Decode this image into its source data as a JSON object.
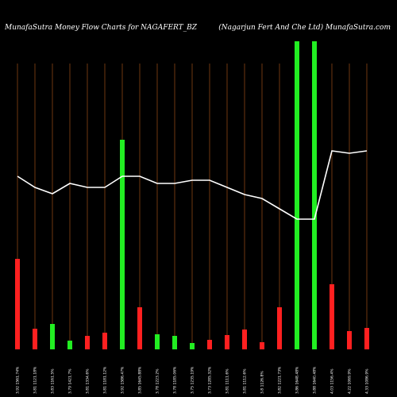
{
  "chart_data": {
    "type": "bar-line",
    "title": "MunafaSutra  Money Flow  Charts for NAGAFERT_BZ",
    "subtitle": "(Nagarjun  Fert And Che   Ltd) MunafaSutra.com",
    "categories": [
      "3.92 1561.74%",
      "3.81 1121.18%",
      "3.83 1161.5%",
      "3.79 1421.7%",
      "3.81 1334.6%",
      "3.81 1181.12%",
      "3.92 1586.47%",
      "3.85 1645.88%",
      "3.78 1223.2%",
      "3.78 1185.06%",
      "3.75 1235.19%",
      "3.73 1285.32%",
      "3.81 1111.6%",
      "3.81 1112.6%",
      "3.8 1126.8%",
      "3.82 1221.73%",
      "3.86 1648.48%",
      "3.88 1640.48%",
      "4.03 1156.4%",
      "4.22 1069.9%",
      "4.33 1086.9%"
    ],
    "bars": {
      "values": [
        114,
        26,
        32,
        11,
        17,
        21,
        264,
        53,
        19,
        17,
        8,
        12,
        18,
        25,
        9,
        53,
        388,
        388,
        82,
        23,
        27
      ],
      "colors": [
        "#ff2020",
        "#ff2020",
        "#22ee22",
        "#22ee22",
        "#ff2020",
        "#ff2020",
        "#22ee22",
        "#ff2020",
        "#22ee22",
        "#22ee22",
        "#22ee22",
        "#ff2020",
        "#ff2020",
        "#ff2020",
        "#ff2020",
        "#ff2020",
        "#22ee22",
        "#22ee22",
        "#ff2020",
        "#ff2020",
        "#ff2020"
      ]
    },
    "line": {
      "color": "#ffffff",
      "values": [
        218,
        204,
        196,
        209,
        204,
        204,
        218,
        218,
        209,
        209,
        213,
        213,
        204,
        195,
        190,
        177,
        164,
        164,
        250,
        247,
        250
      ]
    },
    "ylim": [
      0,
      400
    ],
    "grid_color": "#8b4513"
  }
}
